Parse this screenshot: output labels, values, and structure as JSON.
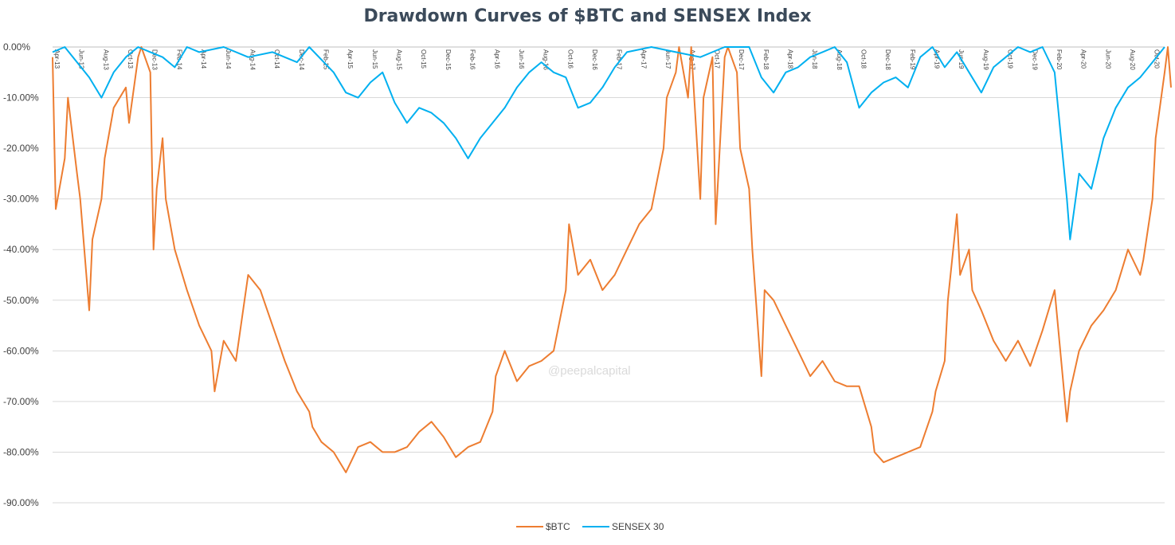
{
  "chart_data": {
    "type": "line",
    "title": "Drawdown Curves of $BTC and SENSEX Index",
    "xlabel": "",
    "ylabel": "",
    "ylim": [
      -90,
      0
    ],
    "yticks": [
      0,
      -10,
      -20,
      -30,
      -40,
      -50,
      -60,
      -70,
      -80,
      -90
    ],
    "ytick_labels": [
      "0.00%",
      "-10.00%",
      "-20.00%",
      "-30.00%",
      "-40.00%",
      "-50.00%",
      "-60.00%",
      "-70.00%",
      "-80.00%",
      "-90.00%"
    ],
    "x_start": "2013-04",
    "x_end": "2020-11",
    "xtick_labels": [
      "Apr-13",
      "Jun-13",
      "Aug-13",
      "Oct-13",
      "Dec-13",
      "Feb-14",
      "Apr-14",
      "Jun-14",
      "Aug-14",
      "Oct-14",
      "Dec-14",
      "Feb-15",
      "Apr-15",
      "Jun-15",
      "Aug-15",
      "Oct-15",
      "Dec-15",
      "Feb-16",
      "Apr-16",
      "Jun-16",
      "Aug-16",
      "Oct-16",
      "Dec-16",
      "Feb-17",
      "Apr-17",
      "Jun-17",
      "Aug-17",
      "Oct-17",
      "Dec-17",
      "Feb-18",
      "Apr-18",
      "Jun-18",
      "Aug-18",
      "Oct-18",
      "Dec-18",
      "Feb-19",
      "Apr-19",
      "Jun-19",
      "Aug-19",
      "Oct-19",
      "Dec-19",
      "Feb-20",
      "Apr-20",
      "Jun-20",
      "Aug-20",
      "Oct-20"
    ],
    "grid": true,
    "legend_position": "bottom-center",
    "watermark": "@peepalcapital",
    "series": [
      {
        "name": "$BTC",
        "color": "#ED7D31",
        "points": [
          [
            "2013-04",
            -2
          ],
          [
            "2013-04",
            -32
          ],
          [
            "2013-05",
            -22
          ],
          [
            "2013-05",
            -10
          ],
          [
            "2013-06",
            -25
          ],
          [
            "2013-06",
            -30
          ],
          [
            "2013-07",
            -52
          ],
          [
            "2013-07",
            -38
          ],
          [
            "2013-08",
            -30
          ],
          [
            "2013-08",
            -22
          ],
          [
            "2013-09",
            -12
          ],
          [
            "2013-10",
            -8
          ],
          [
            "2013-10",
            -15
          ],
          [
            "2013-11",
            -2
          ],
          [
            "2013-11",
            0
          ],
          [
            "2013-12",
            -5
          ],
          [
            "2013-12",
            -40
          ],
          [
            "2013-12",
            -28
          ],
          [
            "2014-01",
            -18
          ],
          [
            "2014-01",
            -30
          ],
          [
            "2014-02",
            -40
          ],
          [
            "2014-03",
            -48
          ],
          [
            "2014-04",
            -55
          ],
          [
            "2014-05",
            -60
          ],
          [
            "2014-05",
            -68
          ],
          [
            "2014-06",
            -58
          ],
          [
            "2014-07",
            -62
          ],
          [
            "2014-08",
            -45
          ],
          [
            "2014-09",
            -48
          ],
          [
            "2014-10",
            -55
          ],
          [
            "2014-11",
            -62
          ],
          [
            "2014-12",
            -68
          ],
          [
            "2015-01",
            -72
          ],
          [
            "2015-01",
            -75
          ],
          [
            "2015-02",
            -78
          ],
          [
            "2015-03",
            -80
          ],
          [
            "2015-04",
            -84
          ],
          [
            "2015-05",
            -79
          ],
          [
            "2015-06",
            -78
          ],
          [
            "2015-07",
            -80
          ],
          [
            "2015-08",
            -80
          ],
          [
            "2015-09",
            -79
          ],
          [
            "2015-10",
            -76
          ],
          [
            "2015-11",
            -74
          ],
          [
            "2015-12",
            -77
          ],
          [
            "2016-01",
            -81
          ],
          [
            "2016-02",
            -79
          ],
          [
            "2016-03",
            -78
          ],
          [
            "2016-04",
            -72
          ],
          [
            "2016-04",
            -65
          ],
          [
            "2016-05",
            -60
          ],
          [
            "2016-06",
            -66
          ],
          [
            "2016-07",
            -63
          ],
          [
            "2016-08",
            -62
          ],
          [
            "2016-09",
            -60
          ],
          [
            "2016-10",
            -48
          ],
          [
            "2016-10",
            -35
          ],
          [
            "2016-11",
            -45
          ],
          [
            "2016-12",
            -42
          ],
          [
            "2017-01",
            -48
          ],
          [
            "2017-02",
            -45
          ],
          [
            "2017-03",
            -40
          ],
          [
            "2017-04",
            -35
          ],
          [
            "2017-05",
            -32
          ],
          [
            "2017-06",
            -20
          ],
          [
            "2017-06",
            -10
          ],
          [
            "2017-07",
            -5
          ],
          [
            "2017-07",
            0
          ],
          [
            "2017-08",
            -10
          ],
          [
            "2017-08",
            0
          ],
          [
            "2017-09",
            -30
          ],
          [
            "2017-09",
            -10
          ],
          [
            "2017-10",
            -2
          ],
          [
            "2017-10",
            -35
          ],
          [
            "2017-11",
            -2
          ],
          [
            "2017-11",
            0
          ],
          [
            "2017-12",
            -5
          ],
          [
            "2017-12",
            -20
          ],
          [
            "2018-01",
            -28
          ],
          [
            "2018-01",
            -40
          ],
          [
            "2018-02",
            -65
          ],
          [
            "2018-02",
            -48
          ],
          [
            "2018-03",
            -50
          ],
          [
            "2018-04",
            -55
          ],
          [
            "2018-05",
            -60
          ],
          [
            "2018-06",
            -65
          ],
          [
            "2018-07",
            -62
          ],
          [
            "2018-08",
            -66
          ],
          [
            "2018-09",
            -67
          ],
          [
            "2018-10",
            -67
          ],
          [
            "2018-11",
            -75
          ],
          [
            "2018-11",
            -80
          ],
          [
            "2018-12",
            -82
          ],
          [
            "2019-01",
            -81
          ],
          [
            "2019-02",
            -80
          ],
          [
            "2019-03",
            -79
          ],
          [
            "2019-04",
            -72
          ],
          [
            "2019-04",
            -68
          ],
          [
            "2019-05",
            -62
          ],
          [
            "2019-05",
            -50
          ],
          [
            "2019-06",
            -33
          ],
          [
            "2019-06",
            -45
          ],
          [
            "2019-07",
            -40
          ],
          [
            "2019-07",
            -48
          ],
          [
            "2019-08",
            -52
          ],
          [
            "2019-09",
            -58
          ],
          [
            "2019-10",
            -62
          ],
          [
            "2019-11",
            -58
          ],
          [
            "2019-12",
            -63
          ],
          [
            "2020-01",
            -56
          ],
          [
            "2020-02",
            -48
          ],
          [
            "2020-03",
            -74
          ],
          [
            "2020-03",
            -68
          ],
          [
            "2020-04",
            -60
          ],
          [
            "2020-05",
            -55
          ],
          [
            "2020-06",
            -52
          ],
          [
            "2020-07",
            -48
          ],
          [
            "2020-08",
            -40
          ],
          [
            "2020-09",
            -45
          ],
          [
            "2020-09",
            -42
          ],
          [
            "2020-10",
            -30
          ],
          [
            "2020-10",
            -18
          ],
          [
            "2020-11",
            -5
          ],
          [
            "2020-11",
            0
          ],
          [
            "2020-11",
            -8
          ]
        ]
      },
      {
        "name": "SENSEX 30",
        "color": "#00B0F0",
        "points": [
          [
            "2013-04",
            -1
          ],
          [
            "2013-05",
            0
          ],
          [
            "2013-06",
            -3
          ],
          [
            "2013-07",
            -6
          ],
          [
            "2013-08",
            -10
          ],
          [
            "2013-09",
            -5
          ],
          [
            "2013-10",
            -2
          ],
          [
            "2013-11",
            0
          ],
          [
            "2013-12",
            -1
          ],
          [
            "2014-01",
            -2
          ],
          [
            "2014-02",
            -4
          ],
          [
            "2014-03",
            0
          ],
          [
            "2014-04",
            -1
          ],
          [
            "2014-06",
            0
          ],
          [
            "2014-08",
            -2
          ],
          [
            "2014-10",
            -1
          ],
          [
            "2014-12",
            -3
          ],
          [
            "2015-01",
            0
          ],
          [
            "2015-03",
            -5
          ],
          [
            "2015-04",
            -9
          ],
          [
            "2015-05",
            -10
          ],
          [
            "2015-06",
            -7
          ],
          [
            "2015-07",
            -5
          ],
          [
            "2015-08",
            -11
          ],
          [
            "2015-09",
            -15
          ],
          [
            "2015-10",
            -12
          ],
          [
            "2015-11",
            -13
          ],
          [
            "2015-12",
            -15
          ],
          [
            "2016-01",
            -18
          ],
          [
            "2016-02",
            -22
          ],
          [
            "2016-03",
            -18
          ],
          [
            "2016-04",
            -15
          ],
          [
            "2016-05",
            -12
          ],
          [
            "2016-06",
            -8
          ],
          [
            "2016-07",
            -5
          ],
          [
            "2016-08",
            -3
          ],
          [
            "2016-09",
            -5
          ],
          [
            "2016-10",
            -6
          ],
          [
            "2016-11",
            -12
          ],
          [
            "2016-12",
            -11
          ],
          [
            "2017-01",
            -8
          ],
          [
            "2017-02",
            -4
          ],
          [
            "2017-03",
            -1
          ],
          [
            "2017-05",
            0
          ],
          [
            "2017-07",
            -1
          ],
          [
            "2017-09",
            -2
          ],
          [
            "2017-11",
            0
          ],
          [
            "2018-01",
            0
          ],
          [
            "2018-02",
            -6
          ],
          [
            "2018-03",
            -9
          ],
          [
            "2018-04",
            -5
          ],
          [
            "2018-05",
            -4
          ],
          [
            "2018-06",
            -2
          ],
          [
            "2018-07",
            -1
          ],
          [
            "2018-08",
            0
          ],
          [
            "2018-09",
            -3
          ],
          [
            "2018-10",
            -12
          ],
          [
            "2018-11",
            -9
          ],
          [
            "2018-12",
            -7
          ],
          [
            "2019-01",
            -6
          ],
          [
            "2019-02",
            -8
          ],
          [
            "2019-03",
            -2
          ],
          [
            "2019-04",
            0
          ],
          [
            "2019-05",
            -4
          ],
          [
            "2019-06",
            -1
          ],
          [
            "2019-07",
            -5
          ],
          [
            "2019-08",
            -9
          ],
          [
            "2019-09",
            -4
          ],
          [
            "2019-10",
            -2
          ],
          [
            "2019-11",
            0
          ],
          [
            "2019-12",
            -1
          ],
          [
            "2020-01",
            0
          ],
          [
            "2020-02",
            -5
          ],
          [
            "2020-03",
            -30
          ],
          [
            "2020-03",
            -38
          ],
          [
            "2020-04",
            -25
          ],
          [
            "2020-05",
            -28
          ],
          [
            "2020-06",
            -18
          ],
          [
            "2020-07",
            -12
          ],
          [
            "2020-08",
            -8
          ],
          [
            "2020-09",
            -6
          ],
          [
            "2020-10",
            -3
          ],
          [
            "2020-11",
            0
          ]
        ]
      }
    ]
  }
}
